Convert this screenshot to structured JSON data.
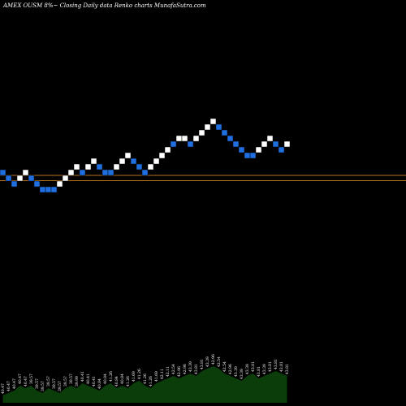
{
  "chart_data": {
    "type": "renko",
    "title": "AMEX  OUSM 8%~  Closing Daily data  Renko  charts MunafaSutra.com",
    "line_levels": [
      1,
      0
    ],
    "brick_colors": {
      "up": "#ffffff",
      "down": "#1f6fe0"
    },
    "background": "#000000",
    "reference_line_color": "#b8721c",
    "volume_fill": "#0b3d0b",
    "bricks": [
      {
        "dir": "down",
        "level": 1
      },
      {
        "dir": "down",
        "level": 0
      },
      {
        "dir": "down",
        "level": -1
      },
      {
        "dir": "up",
        "level": 0
      },
      {
        "dir": "up",
        "level": 1
      },
      {
        "dir": "down",
        "level": 0
      },
      {
        "dir": "down",
        "level": -1
      },
      {
        "dir": "down",
        "level": -2
      },
      {
        "dir": "down",
        "level": -2
      },
      {
        "dir": "down",
        "level": -2
      },
      {
        "dir": "up",
        "level": -1
      },
      {
        "dir": "up",
        "level": 0
      },
      {
        "dir": "up",
        "level": 1
      },
      {
        "dir": "up",
        "level": 2
      },
      {
        "dir": "down",
        "level": 1
      },
      {
        "dir": "up",
        "level": 2
      },
      {
        "dir": "up",
        "level": 3
      },
      {
        "dir": "down",
        "level": 2
      },
      {
        "dir": "down",
        "level": 1
      },
      {
        "dir": "down",
        "level": 1
      },
      {
        "dir": "up",
        "level": 2
      },
      {
        "dir": "up",
        "level": 3
      },
      {
        "dir": "up",
        "level": 4
      },
      {
        "dir": "down",
        "level": 3
      },
      {
        "dir": "down",
        "level": 2
      },
      {
        "dir": "down",
        "level": 1
      },
      {
        "dir": "up",
        "level": 2
      },
      {
        "dir": "up",
        "level": 3
      },
      {
        "dir": "up",
        "level": 4
      },
      {
        "dir": "up",
        "level": 5
      },
      {
        "dir": "down",
        "level": 6
      },
      {
        "dir": "up",
        "level": 7
      },
      {
        "dir": "up",
        "level": 7
      },
      {
        "dir": "down",
        "level": 6
      },
      {
        "dir": "up",
        "level": 7
      },
      {
        "dir": "up",
        "level": 8
      },
      {
        "dir": "up",
        "level": 9
      },
      {
        "dir": "up",
        "level": 10
      },
      {
        "dir": "down",
        "level": 9
      },
      {
        "dir": "down",
        "level": 8
      },
      {
        "dir": "down",
        "level": 7
      },
      {
        "dir": "down",
        "level": 6
      },
      {
        "dir": "down",
        "level": 5
      },
      {
        "dir": "down",
        "level": 4
      },
      {
        "dir": "down",
        "level": 4
      },
      {
        "dir": "up",
        "level": 5
      },
      {
        "dir": "up",
        "level": 6
      },
      {
        "dir": "up",
        "level": 7
      },
      {
        "dir": "down",
        "level": 6
      },
      {
        "dir": "down",
        "level": 5
      },
      {
        "dir": "up",
        "level": 6
      }
    ],
    "volume_labels": [
      "40.47",
      "40.47",
      "40.47",
      "40.47",
      "40.47",
      "39.57",
      "39.57",
      "39.57",
      "39.57",
      "39.57",
      "39.57",
      "39.57",
      "39.57",
      "39.99",
      "40.41",
      "40.41",
      "40.41",
      "40.84",
      "40.84",
      "41.26",
      "40.84",
      "40.84",
      "41.26",
      "41.69",
      "41.26",
      "41.26",
      "41.26",
      "41.69",
      "42.11",
      "42.11",
      "42.54",
      "42.96",
      "42.96",
      "43.39",
      "43.81",
      "43.81",
      "43.39",
      "42.96",
      "42.54",
      "42.54",
      "42.96",
      "43.39",
      "43.39",
      "43.39",
      "43.81",
      "43.81",
      "43.39",
      "43.81",
      "43.81",
      "43.81",
      "43.81"
    ],
    "volume_heights": [
      0.15,
      0.2,
      0.25,
      0.35,
      0.3,
      0.35,
      0.25,
      0.2,
      0.3,
      0.25,
      0.2,
      0.3,
      0.35,
      0.3,
      0.4,
      0.35,
      0.3,
      0.25,
      0.35,
      0.4,
      0.3,
      0.35,
      0.3,
      0.4,
      0.45,
      0.35,
      0.3,
      0.4,
      0.45,
      0.5,
      0.55,
      0.5,
      0.55,
      0.6,
      0.55,
      0.65,
      0.7,
      0.75,
      0.7,
      0.6,
      0.55,
      0.5,
      0.45,
      0.55,
      0.6,
      0.5,
      0.55,
      0.6,
      0.65,
      0.6,
      0.55
    ]
  }
}
